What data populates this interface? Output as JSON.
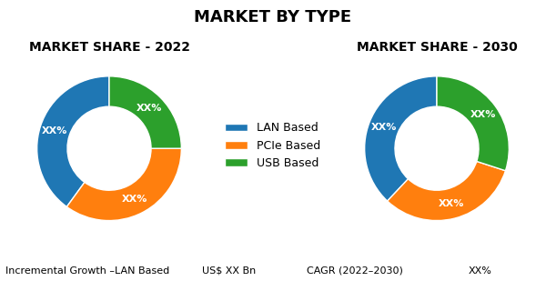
{
  "title": "MARKET BY TYPE",
  "annotations": [
    "Incremental Growth –LAN Based",
    "US$ XX Bn",
    "CAGR (2022–2030)",
    "XX%"
  ],
  "chart_data": [
    {
      "type": "pie",
      "title": "MARKET SHARE - 2022",
      "categories": [
        "LAN Based",
        "PCIe Based",
        "USB Based"
      ],
      "values": [
        40,
        35,
        25
      ],
      "value_labels": [
        "XX%",
        "XX%",
        "XX%"
      ],
      "data_labels": true,
      "legend": "center"
    },
    {
      "type": "pie",
      "title": "MARKET SHARE - 2030",
      "categories": [
        "LAN Based",
        "PCIe Based",
        "USB Based"
      ],
      "values": [
        38,
        32,
        30
      ],
      "value_labels": [
        "XX%",
        "XX%",
        "XX%"
      ],
      "data_labels": true
    }
  ]
}
